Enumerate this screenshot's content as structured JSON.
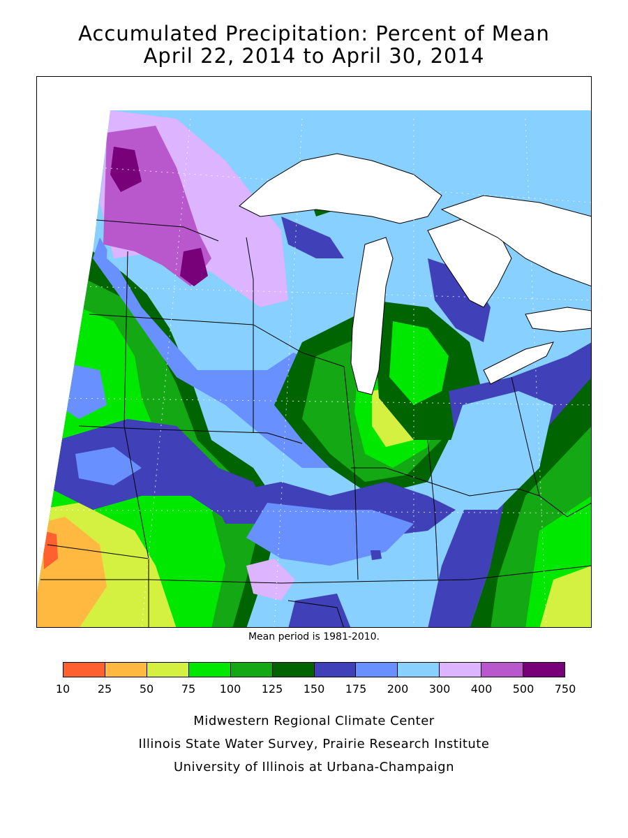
{
  "title": {
    "line1": "Accumulated Precipitation: Percent of Mean",
    "line2": "April 22, 2014 to April 30, 2014"
  },
  "mean_note": "Mean period is 1981-2010.",
  "legend": {
    "ticks": [
      "10",
      "25",
      "50",
      "75",
      "100",
      "125",
      "150",
      "175",
      "200",
      "300",
      "400",
      "500",
      "750"
    ],
    "colors": [
      "#ff6030",
      "#ffb840",
      "#d4f040",
      "#00e800",
      "#14a814",
      "#006400",
      "#4040b8",
      "#6890ff",
      "#88d0ff",
      "#dcb4ff",
      "#b858cc",
      "#780078"
    ]
  },
  "credits": [
    "Midwestern Regional Climate Center",
    "Illinois State Water Survey, Prairie Research Institute",
    "University of Illinois at Urbana-Champaign"
  ]
}
